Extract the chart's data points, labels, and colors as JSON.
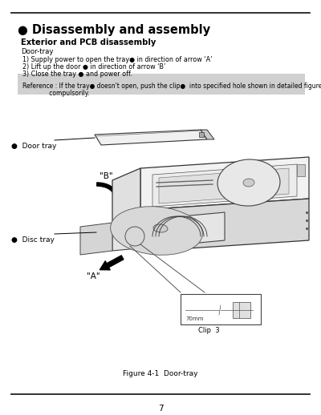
{
  "title": "● Disassembly and assembly",
  "subtitle": "Exterior and PCB disassembly",
  "section_label": "Door-tray",
  "steps": [
    "1) Supply power to open the tray● in direction of arrow ‘A’",
    "2) Lift up the door ● in direction of arrow ‘B’",
    "3) Close the tray ● and power off."
  ],
  "reference_line1": "Reference : If the tray● doesn't open, push the clip●  into specified hole shown in detailed figure to open it",
  "reference_line2": "              compulsorily.",
  "label_door_tray": "●  Door tray",
  "label_disc_tray": "●  Disc tray",
  "arrow_b_label": "\"B\"",
  "arrow_a_label": "\"A\"",
  "clip_label": "Clip  3",
  "figure_caption": "Figure 4-1  Door-tray",
  "page_number": "7",
  "bg_color": "#ffffff",
  "ref_box_color": "#d0d0d0",
  "text_color": "#000000"
}
